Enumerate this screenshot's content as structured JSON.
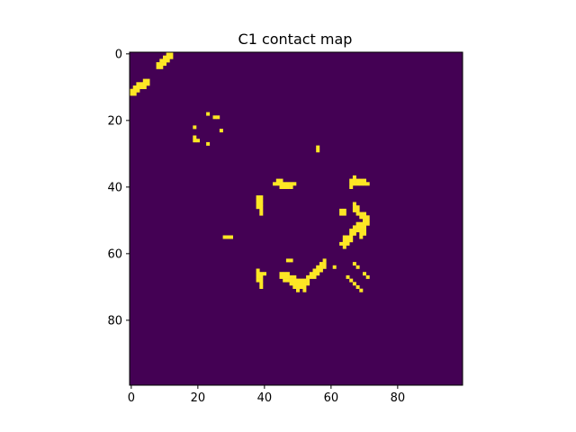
{
  "chart_data": {
    "type": "heatmap",
    "title": "C1 contact map",
    "xlabel": "",
    "ylabel": "",
    "xlim": [
      0,
      99
    ],
    "ylim": [
      0,
      99
    ],
    "y_axis_inverted": true,
    "grid": false,
    "legend": "none",
    "xticks": [
      0,
      20,
      40,
      60,
      80
    ],
    "yticks": [
      0,
      20,
      40,
      60,
      80
    ],
    "values_legend": {
      "0": "no contact",
      "1": "contact"
    },
    "colors": {
      "background": "#440154",
      "contact": "#fde725",
      "frame": "#000000"
    },
    "contacts": [
      {
        "row": 0,
        "cols": [
          11,
          12
        ]
      },
      {
        "row": 1,
        "cols": [
          10,
          11,
          12
        ]
      },
      {
        "row": 2,
        "cols": [
          9,
          10,
          11
        ]
      },
      {
        "row": 3,
        "cols": [
          8,
          9,
          10
        ]
      },
      {
        "row": 4,
        "cols": [
          8,
          9
        ]
      },
      {
        "row": 8,
        "cols": [
          4,
          5
        ]
      },
      {
        "row": 9,
        "cols": [
          2,
          3,
          4,
          5
        ]
      },
      {
        "row": 10,
        "cols": [
          1,
          2,
          3,
          4
        ]
      },
      {
        "row": 11,
        "cols": [
          0,
          1,
          2
        ]
      },
      {
        "row": 12,
        "cols": [
          0,
          1
        ]
      },
      {
        "row": 18,
        "cols": [
          23
        ]
      },
      {
        "row": 19,
        "cols": [
          25,
          26
        ]
      },
      {
        "row": 22,
        "cols": [
          19
        ]
      },
      {
        "row": 23,
        "cols": [
          27
        ]
      },
      {
        "row": 25,
        "cols": [
          19
        ]
      },
      {
        "row": 26,
        "cols": [
          19,
          20
        ]
      },
      {
        "row": 27,
        "cols": [
          23
        ]
      },
      {
        "row": 28,
        "cols": [
          56
        ]
      },
      {
        "row": 29,
        "cols": [
          56
        ]
      },
      {
        "row": 37,
        "cols": [
          67
        ]
      },
      {
        "row": 38,
        "cols": [
          44,
          45,
          66,
          67,
          68,
          69,
          70
        ]
      },
      {
        "row": 39,
        "cols": [
          43,
          44,
          45,
          46,
          47,
          48,
          49,
          66,
          67,
          68,
          69,
          70,
          71
        ]
      },
      {
        "row": 40,
        "cols": [
          45,
          46,
          47,
          48,
          66
        ]
      },
      {
        "row": 43,
        "cols": [
          38,
          39
        ]
      },
      {
        "row": 44,
        "cols": [
          38,
          39
        ]
      },
      {
        "row": 45,
        "cols": [
          38,
          39,
          67
        ]
      },
      {
        "row": 46,
        "cols": [
          38,
          39,
          67,
          68
        ]
      },
      {
        "row": 47,
        "cols": [
          39,
          63,
          64,
          67,
          68
        ]
      },
      {
        "row": 48,
        "cols": [
          39,
          63,
          64,
          68,
          69,
          70
        ]
      },
      {
        "row": 49,
        "cols": [
          69,
          70,
          71
        ]
      },
      {
        "row": 50,
        "cols": [
          70,
          71
        ]
      },
      {
        "row": 51,
        "cols": [
          68,
          69,
          70,
          71
        ]
      },
      {
        "row": 52,
        "cols": [
          67,
          68,
          69,
          70
        ]
      },
      {
        "row": 53,
        "cols": [
          66,
          67,
          68,
          69,
          70
        ]
      },
      {
        "row": 54,
        "cols": [
          66,
          67,
          69,
          70
        ]
      },
      {
        "row": 55,
        "cols": [
          28,
          29,
          30,
          64,
          65,
          66,
          69
        ]
      },
      {
        "row": 56,
        "cols": [
          64,
          65,
          66
        ]
      },
      {
        "row": 57,
        "cols": [
          63,
          64,
          65
        ]
      },
      {
        "row": 58,
        "cols": [
          64
        ]
      },
      {
        "row": 62,
        "cols": [
          47,
          48,
          58
        ]
      },
      {
        "row": 63,
        "cols": [
          57,
          58,
          67
        ]
      },
      {
        "row": 64,
        "cols": [
          56,
          57,
          58,
          61,
          68
        ]
      },
      {
        "row": 65,
        "cols": [
          38,
          55,
          56,
          57
        ]
      },
      {
        "row": 66,
        "cols": [
          38,
          39,
          40,
          45,
          46,
          47,
          54,
          55,
          56,
          70
        ]
      },
      {
        "row": 67,
        "cols": [
          38,
          39,
          45,
          46,
          47,
          48,
          49,
          53,
          54,
          55,
          65,
          71
        ]
      },
      {
        "row": 68,
        "cols": [
          38,
          39,
          46,
          47,
          48,
          49,
          50,
          51,
          52,
          53,
          66
        ]
      },
      {
        "row": 69,
        "cols": [
          39,
          48,
          49,
          50,
          51,
          52,
          53,
          67
        ]
      },
      {
        "row": 70,
        "cols": [
          39,
          49,
          50,
          51,
          52,
          68
        ]
      },
      {
        "row": 71,
        "cols": [
          50,
          52,
          69
        ]
      }
    ]
  }
}
